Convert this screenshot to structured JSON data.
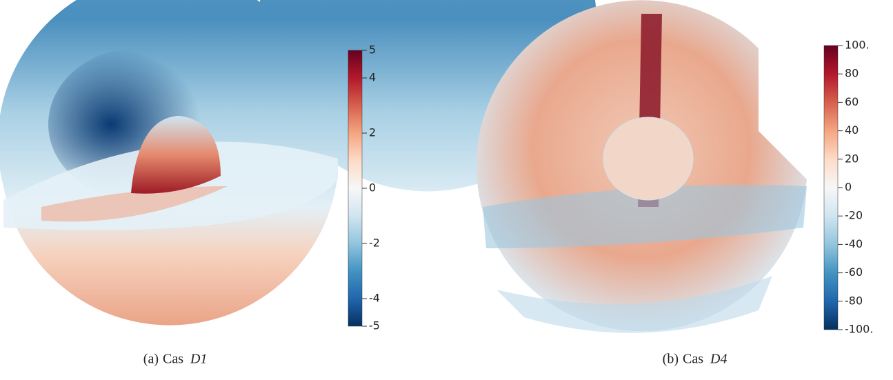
{
  "panels": [
    {
      "label": "(a)",
      "text": "Cas",
      "var": "D1",
      "colorbar": {
        "lim": [
          -5,
          5
        ],
        "ticks": [
          5,
          4,
          2,
          0,
          -2,
          -4,
          -5
        ]
      }
    },
    {
      "label": "(b)",
      "text": "Cas",
      "var": "D4",
      "colorbar": {
        "lim": [
          -100,
          100
        ],
        "ticks": [
          {
            "value": 100,
            "label": "100."
          },
          80,
          60,
          40,
          20,
          0,
          -20,
          -40,
          -60,
          -80,
          {
            "value": -100,
            "label": "-100."
          }
        ]
      }
    }
  ]
}
